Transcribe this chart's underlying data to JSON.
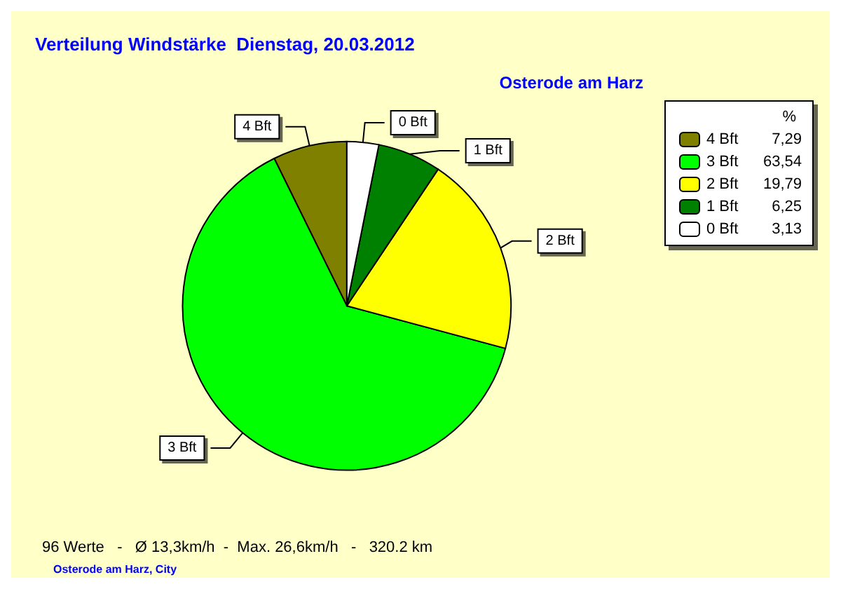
{
  "chart_data": {
    "type": "pie",
    "title": "Verteilung Windstärke  Dienstag, 20.03.2012",
    "subtitle": "Osterode am Harz",
    "categories": [
      "4 Bft",
      "3 Bft",
      "2 Bft",
      "1 Bft",
      "0 Bft"
    ],
    "values": [
      7.29,
      63.54,
      19.79,
      6.25,
      3.13
    ],
    "value_labels": [
      "7,29",
      "63,54",
      "19,79",
      "6,25",
      "3,13"
    ],
    "colors": [
      "#808000",
      "#00ff00",
      "#ffff00",
      "#008000",
      "#ffffff"
    ],
    "legend": "top right",
    "legend_title": "%",
    "annotations": [
      "96 Werte   -   Ø 13,3km/h  -  Max. 26,6km/h   -   320.2 km",
      "Osterode am Harz, City"
    ]
  }
}
